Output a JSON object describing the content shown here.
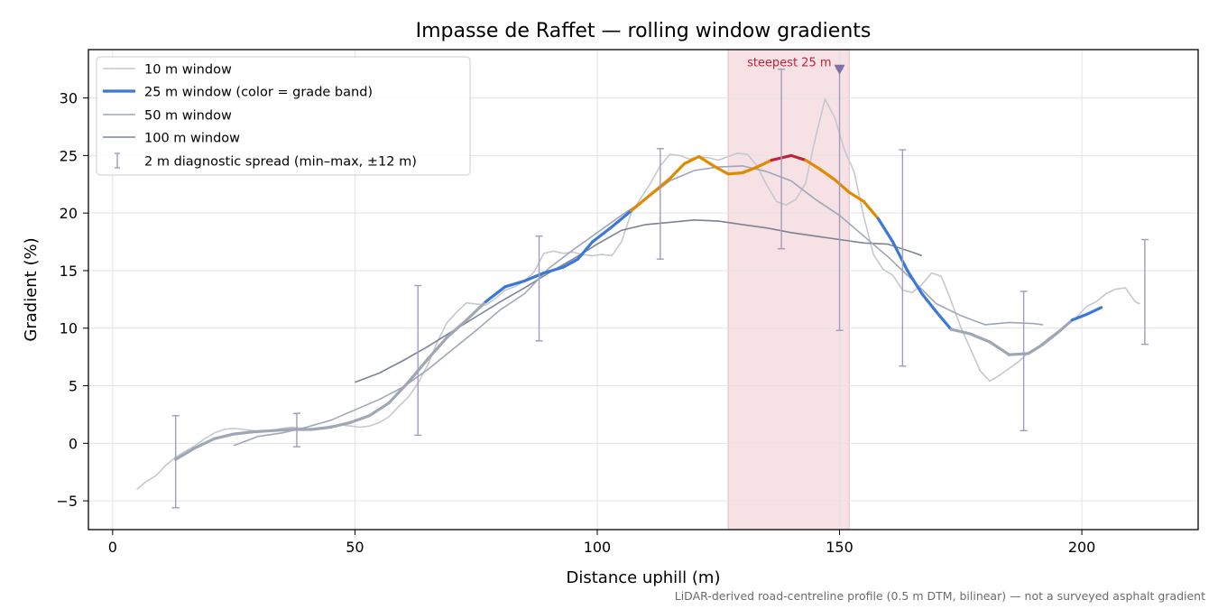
{
  "chart_data": {
    "type": "line",
    "title": "Impasse de Raffet — rolling window gradients",
    "xlabel": "Distance uphill (m)",
    "ylabel": "Gradient (%)",
    "xlim": [
      -5,
      224
    ],
    "ylim": [
      -7.5,
      34.2
    ],
    "x_ticks": [
      0,
      50,
      100,
      150,
      200
    ],
    "y_ticks": [
      -5,
      0,
      5,
      10,
      15,
      20,
      25,
      30
    ],
    "grid": true,
    "legend_placement": "top-left",
    "footnote": "LiDAR-derived road-centreline profile (0.5 m DTM, bilinear) — not a surveyed asphalt gradient",
    "annotation": {
      "text": "steepest 25 m",
      "x": 150,
      "y": 32.5
    },
    "highlight_band": {
      "x_start": 127,
      "x_end": 152,
      "color": "#e8b4bd"
    },
    "grade_band_colors": {
      "low": "#3b78d8",
      "high": "#e08a00",
      "peak": "#c0223b"
    },
    "series": [
      {
        "name": "10 m window",
        "color": "#c4c8d0",
        "points": [
          [
            5,
            -4
          ],
          [
            7,
            -3.3
          ],
          [
            9,
            -2.8
          ],
          [
            11,
            -1.9
          ],
          [
            13,
            -1.2
          ],
          [
            15,
            -0.7
          ],
          [
            17,
            -0.2
          ],
          [
            19,
            0.4
          ],
          [
            21,
            0.9
          ],
          [
            23,
            1.2
          ],
          [
            25,
            1.3
          ],
          [
            27,
            1.2
          ],
          [
            29,
            1.1
          ],
          [
            31,
            1.0
          ],
          [
            33,
            1.1
          ],
          [
            35,
            1.3
          ],
          [
            37,
            1.4
          ],
          [
            39,
            1.3
          ],
          [
            41,
            1.2
          ],
          [
            43,
            1.3
          ],
          [
            45,
            1.5
          ],
          [
            47,
            1.6
          ],
          [
            49,
            1.5
          ],
          [
            51,
            1.4
          ],
          [
            53,
            1.5
          ],
          [
            55,
            1.8
          ],
          [
            57,
            2.3
          ],
          [
            59,
            3.2
          ],
          [
            61,
            4.0
          ],
          [
            63,
            5.2
          ],
          [
            65,
            6.8
          ],
          [
            67,
            8.8
          ],
          [
            69,
            10.5
          ],
          [
            71,
            11.4
          ],
          [
            73,
            12.2
          ],
          [
            75,
            12.1
          ],
          [
            77,
            12.0
          ],
          [
            79,
            12.6
          ],
          [
            81,
            13.3
          ],
          [
            83,
            13.6
          ],
          [
            85,
            14.1
          ],
          [
            87,
            14.9
          ],
          [
            89,
            16.5
          ],
          [
            91,
            16.7
          ],
          [
            93,
            16.5
          ],
          [
            95,
            16.6
          ],
          [
            97,
            16.4
          ],
          [
            99,
            16.3
          ],
          [
            101,
            16.4
          ],
          [
            103,
            16.3
          ],
          [
            105,
            17.5
          ],
          [
            107,
            20.0
          ],
          [
            109,
            21.3
          ],
          [
            111,
            22.6
          ],
          [
            113,
            24.1
          ],
          [
            115,
            25.1
          ],
          [
            117,
            25.0
          ],
          [
            119,
            24.7
          ],
          [
            121,
            24.9
          ],
          [
            123,
            24.8
          ],
          [
            125,
            24.6
          ],
          [
            127,
            24.9
          ],
          [
            129,
            25.2
          ],
          [
            131,
            25.1
          ],
          [
            133,
            24.1
          ],
          [
            135,
            22.4
          ],
          [
            137,
            21.0
          ],
          [
            139,
            20.7
          ],
          [
            141,
            21.2
          ],
          [
            143,
            22.6
          ],
          [
            145,
            26.5
          ],
          [
            147,
            29.9
          ],
          [
            149,
            28.3
          ],
          [
            151,
            25.5
          ],
          [
            153,
            23.6
          ],
          [
            155,
            19.7
          ],
          [
            157,
            16.4
          ],
          [
            159,
            15.1
          ],
          [
            161,
            14.6
          ],
          [
            163,
            13.3
          ],
          [
            165,
            13.1
          ],
          [
            167,
            13.8
          ],
          [
            169,
            14.8
          ],
          [
            171,
            14.5
          ],
          [
            173,
            12.4
          ],
          [
            175,
            10.1
          ],
          [
            177,
            8.2
          ],
          [
            179,
            6.3
          ],
          [
            181,
            5.4
          ],
          [
            183,
            5.9
          ],
          [
            185,
            6.5
          ],
          [
            187,
            7.1
          ],
          [
            189,
            7.9
          ],
          [
            191,
            8.4
          ],
          [
            193,
            9.1
          ],
          [
            195,
            9.7
          ],
          [
            197,
            10.3
          ],
          [
            199,
            11.0
          ],
          [
            201,
            11.9
          ],
          [
            203,
            12.3
          ],
          [
            205,
            13.0
          ],
          [
            207,
            13.4
          ],
          [
            209,
            13.5
          ],
          [
            211,
            12.3
          ],
          [
            212,
            12.1
          ]
        ]
      },
      {
        "name": "25 m window (color = grade band)",
        "color": "#3b78d8",
        "points": [
          [
            13,
            -1.4
          ],
          [
            17,
            -0.4
          ],
          [
            21,
            0.4
          ],
          [
            25,
            0.8
          ],
          [
            29,
            1.0
          ],
          [
            33,
            1.1
          ],
          [
            37,
            1.2
          ],
          [
            41,
            1.2
          ],
          [
            45,
            1.4
          ],
          [
            49,
            1.8
          ],
          [
            53,
            2.4
          ],
          [
            57,
            3.5
          ],
          [
            61,
            5.3
          ],
          [
            65,
            7.3
          ],
          [
            69,
            9.2
          ],
          [
            73,
            10.7
          ],
          [
            77,
            12.3
          ],
          [
            81,
            13.6
          ],
          [
            85,
            14.1
          ],
          [
            89,
            14.8
          ],
          [
            93,
            15.3
          ],
          [
            96,
            16.0
          ],
          [
            99,
            17.5
          ],
          [
            103,
            18.8
          ],
          [
            107,
            20.2
          ],
          [
            111,
            21.6
          ],
          [
            115,
            23.0
          ],
          [
            118,
            24.3
          ],
          [
            121,
            24.9
          ],
          [
            124,
            24.1
          ],
          [
            127,
            23.4
          ],
          [
            130,
            23.5
          ],
          [
            133,
            24.0
          ],
          [
            136,
            24.6
          ],
          [
            140,
            25.0
          ],
          [
            143,
            24.6
          ],
          [
            146,
            23.8
          ],
          [
            149,
            22.9
          ],
          [
            152,
            21.8
          ],
          [
            155,
            21.0
          ],
          [
            158,
            19.5
          ],
          [
            161,
            17.5
          ],
          [
            164,
            15.0
          ],
          [
            167,
            13.0
          ],
          [
            170,
            11.4
          ],
          [
            173,
            9.9
          ],
          [
            177,
            9.5
          ],
          [
            181,
            8.8
          ],
          [
            185,
            7.7
          ],
          [
            189,
            7.8
          ],
          [
            192,
            8.6
          ],
          [
            195,
            9.6
          ],
          [
            198,
            10.7
          ],
          [
            201,
            11.2
          ],
          [
            204,
            11.8
          ]
        ]
      },
      {
        "name": "50 m window",
        "color": "#9fa7b6",
        "points": [
          [
            25,
            -0.2
          ],
          [
            30,
            0.6
          ],
          [
            35,
            0.9
          ],
          [
            40,
            1.4
          ],
          [
            45,
            2.0
          ],
          [
            50,
            2.9
          ],
          [
            55,
            3.8
          ],
          [
            60,
            4.9
          ],
          [
            65,
            6.4
          ],
          [
            70,
            8.1
          ],
          [
            75,
            9.8
          ],
          [
            80,
            11.6
          ],
          [
            85,
            13.0
          ],
          [
            90,
            15.2
          ],
          [
            95,
            16.8
          ],
          [
            100,
            18.3
          ],
          [
            105,
            19.8
          ],
          [
            110,
            21.2
          ],
          [
            115,
            22.8
          ],
          [
            120,
            23.7
          ],
          [
            125,
            24.0
          ],
          [
            130,
            24.1
          ],
          [
            135,
            23.6
          ],
          [
            140,
            22.8
          ],
          [
            145,
            21.2
          ],
          [
            150,
            19.8
          ],
          [
            155,
            18.0
          ],
          [
            160,
            16.2
          ],
          [
            165,
            14.2
          ],
          [
            170,
            12.1
          ],
          [
            175,
            11.1
          ],
          [
            180,
            10.3
          ],
          [
            185,
            10.5
          ],
          [
            190,
            10.4
          ],
          [
            192,
            10.3
          ]
        ]
      },
      {
        "name": "100 m window",
        "color": "#7b8394",
        "points": [
          [
            50,
            5.3
          ],
          [
            55,
            6.1
          ],
          [
            60,
            7.2
          ],
          [
            65,
            8.4
          ],
          [
            70,
            9.7
          ],
          [
            75,
            11.0
          ],
          [
            80,
            12.3
          ],
          [
            85,
            13.5
          ],
          [
            90,
            14.8
          ],
          [
            95,
            16.0
          ],
          [
            100,
            17.3
          ],
          [
            105,
            18.5
          ],
          [
            110,
            19.0
          ],
          [
            115,
            19.2
          ],
          [
            120,
            19.4
          ],
          [
            125,
            19.3
          ],
          [
            130,
            19.0
          ],
          [
            135,
            18.7
          ],
          [
            140,
            18.3
          ],
          [
            145,
            18.0
          ],
          [
            150,
            17.7
          ],
          [
            155,
            17.4
          ],
          [
            160,
            17.3
          ],
          [
            165,
            16.6
          ],
          [
            167,
            16.3
          ]
        ]
      },
      {
        "name": "2 m diagnostic spread (min–max, ±12 m)",
        "color": "#a49bbd",
        "error_bars": [
          {
            "x": 13,
            "min": -5.6,
            "max": 2.4
          },
          {
            "x": 38,
            "min": -0.3,
            "max": 2.6
          },
          {
            "x": 63,
            "min": 0.7,
            "max": 13.7
          },
          {
            "x": 88,
            "min": 8.9,
            "max": 18.0
          },
          {
            "x": 113,
            "min": 16.0,
            "max": 25.6
          },
          {
            "x": 138,
            "min": 16.9,
            "max": 32.5
          },
          {
            "x": 150,
            "min": 9.8,
            "max": 32.5
          },
          {
            "x": 163,
            "min": 6.7,
            "max": 25.5
          },
          {
            "x": 188,
            "min": 1.1,
            "max": 13.2
          },
          {
            "x": 213,
            "min": 8.6,
            "max": 17.7
          }
        ]
      }
    ]
  }
}
